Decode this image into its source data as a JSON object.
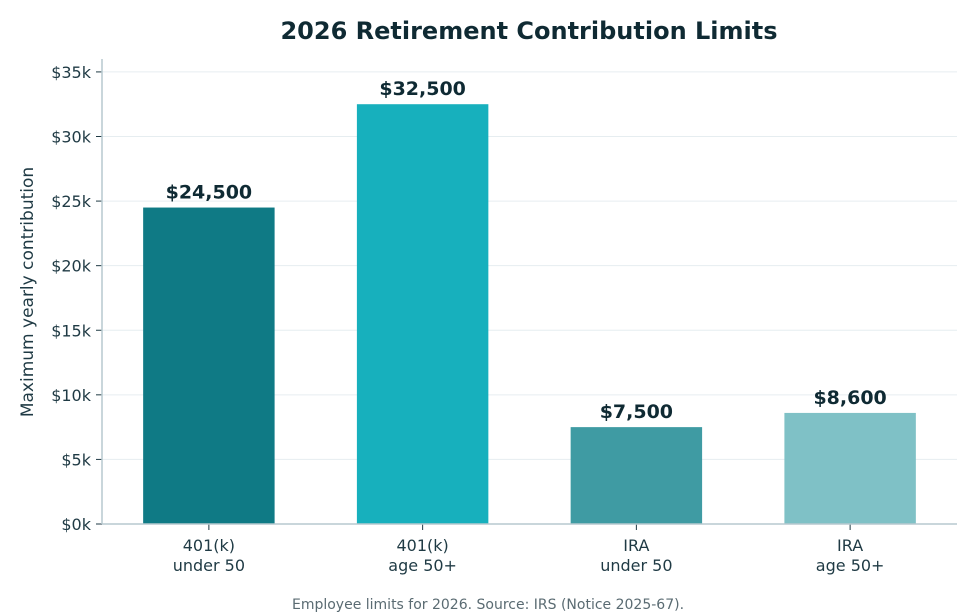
{
  "chart_data": {
    "type": "bar",
    "title": "2026 Retirement Contribution Limits",
    "ylabel": "Maximum yearly contribution",
    "xlabel": "",
    "categories": [
      [
        "401(k)",
        "under 50"
      ],
      [
        "401(k)",
        "age 50+"
      ],
      [
        "IRA",
        "under 50"
      ],
      [
        "IRA",
        "age 50+"
      ]
    ],
    "values": [
      24500,
      32500,
      7500,
      8600
    ],
    "data_labels": [
      "$24,500",
      "$32,500",
      "$7,500",
      "$8,600"
    ],
    "colors": [
      "#0f7a85",
      "#17b0bd",
      "#3f9ba3",
      "#7fc1c6"
    ],
    "ylim": [
      0,
      36000
    ],
    "yticks": [
      0,
      5000,
      10000,
      15000,
      20000,
      25000,
      30000,
      35000
    ],
    "ytick_labels": [
      "$0k",
      "$5k",
      "$10k",
      "$15k",
      "$20k",
      "$25k",
      "$30k",
      "$35k"
    ],
    "grid": true,
    "legend": "none"
  },
  "footnote": "Employee limits for 2026. Source: IRS (Notice 2025-67)."
}
